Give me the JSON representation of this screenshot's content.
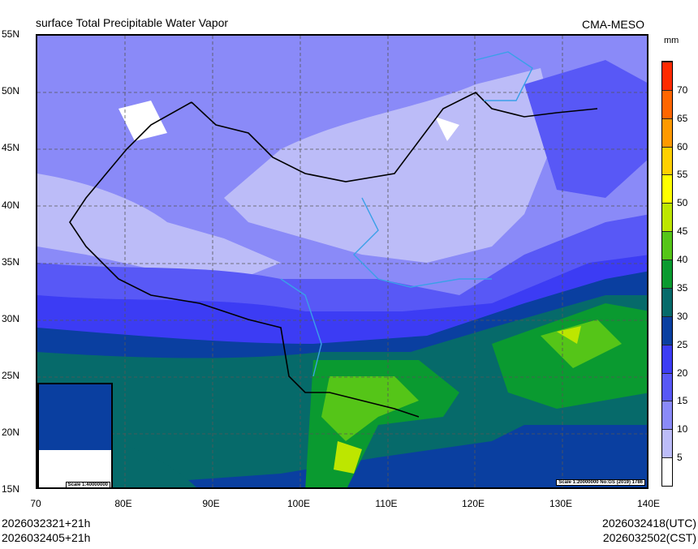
{
  "title": "surface Total Precipitable Water Vapor",
  "model": "CMA-MESO",
  "units": "mm",
  "lat_labels": [
    "55N",
    "50N",
    "45N",
    "40N",
    "35N",
    "30N",
    "25N",
    "20N",
    "15N"
  ],
  "lon_labels": [
    "70",
    "80E",
    "90E",
    "100E",
    "110E",
    "120E",
    "130E",
    "140E"
  ],
  "colorbar": {
    "labels": [
      "5",
      "10",
      "15",
      "20",
      "25",
      "30",
      "35",
      "40",
      "45",
      "50",
      "55",
      "60",
      "65",
      "70"
    ],
    "colors": [
      "#ffffff",
      "#bcbcf8",
      "#8a8af8",
      "#5858f6",
      "#3c3cf4",
      "#0a3fa0",
      "#066a6a",
      "#0a9a30",
      "#55c518",
      "#bde600",
      "#ffff00",
      "#ffd000",
      "#ff9900",
      "#ff6600",
      "#ff2a00"
    ]
  },
  "inset_scale": "Scale 1:40000000",
  "main_scale": "Scale 1:20000000 No:GS (2019) 1786",
  "footer": {
    "init_utc": "2026032321+21h",
    "init_cst": "2026032405+21h",
    "valid_utc": "2026032418(UTC)",
    "valid_cst": "2026032502(CST)"
  }
}
